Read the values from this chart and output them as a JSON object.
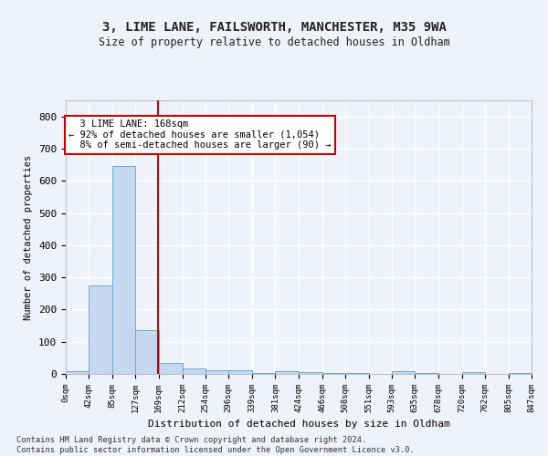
{
  "title": "3, LIME LANE, FAILSWORTH, MANCHESTER, M35 9WA",
  "subtitle": "Size of property relative to detached houses in Oldham",
  "xlabel": "Distribution of detached houses by size in Oldham",
  "ylabel": "Number of detached properties",
  "bin_edges": [
    0,
    42,
    85,
    127,
    169,
    212,
    254,
    296,
    339,
    381,
    424,
    466,
    508,
    551,
    593,
    635,
    678,
    720,
    762,
    805,
    847
  ],
  "bar_heights": [
    8,
    275,
    645,
    137,
    35,
    18,
    12,
    10,
    4,
    8,
    6,
    4,
    2,
    0,
    8,
    2,
    0,
    6,
    0,
    2
  ],
  "bar_color": "#c5d8f0",
  "bar_edge_color": "#6aaad4",
  "property_size": 168,
  "vline_color": "#cc0000",
  "annotation_text": "  3 LIME LANE: 168sqm\n← 92% of detached houses are smaller (1,054)\n  8% of semi-detached houses are larger (90) →",
  "annotation_box_color": "#ffffff",
  "annotation_box_edge": "#cc0000",
  "ylim": [
    0,
    850
  ],
  "footer_text": "Contains HM Land Registry data © Crown copyright and database right 2024.\nContains public sector information licensed under the Open Government Licence v3.0.",
  "tick_labels": [
    "0sqm",
    "42sqm",
    "85sqm",
    "127sqm",
    "169sqm",
    "212sqm",
    "254sqm",
    "296sqm",
    "339sqm",
    "381sqm",
    "424sqm",
    "466sqm",
    "508sqm",
    "551sqm",
    "593sqm",
    "635sqm",
    "678sqm",
    "720sqm",
    "762sqm",
    "805sqm",
    "847sqm"
  ],
  "background_color": "#eef2fb",
  "grid_color": "#ffffff",
  "yticks": [
    0,
    100,
    200,
    300,
    400,
    500,
    600,
    700,
    800
  ]
}
